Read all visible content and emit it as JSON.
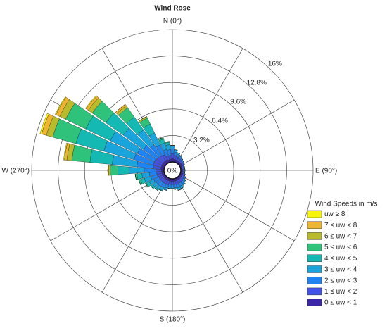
{
  "chart_data": {
    "type": "windrose",
    "title": "Wind Rose",
    "direction_labels": [
      "N (0°)",
      "E (90°)",
      "S (180°)",
      "W (270°)"
    ],
    "center_label": "0%",
    "rlim": [
      0,
      16
    ],
    "rticks": [
      {
        "value": 3.2,
        "label": "3.2%"
      },
      {
        "value": 6.4,
        "label": "6.4%"
      },
      {
        "value": 9.6,
        "label": "9.6%"
      },
      {
        "value": 12.8,
        "label": "12.8%"
      },
      {
        "value": 16,
        "label": "16%"
      }
    ],
    "legend_title": "Wind Speeds in m/s",
    "legend_position": "lower right",
    "series": [
      {
        "name": "0 ≤ uw < 1",
        "color": "#3b27a6",
        "values": [
          0.4,
          0.3,
          0.3,
          0.3,
          0.3,
          0.3,
          0.3,
          0.2,
          0.2,
          0.2,
          0.2,
          0.3,
          0.3,
          0.3,
          0.3,
          0.3,
          0.3,
          0.3,
          0.3,
          0.3,
          0.3,
          0.3,
          0.3,
          0.3,
          0.3,
          0.3,
          0.3,
          0.3,
          0.4,
          0.4,
          0.4,
          0.4,
          0.4,
          0.4,
          0.3,
          0.3
        ]
      },
      {
        "name": "1 ≤ uw < 2",
        "color": "#4252e8",
        "values": [
          0.6,
          0.5,
          0.4,
          0.3,
          0.3,
          0.2,
          0.2,
          0.2,
          0.2,
          0.2,
          0.2,
          0.2,
          0.3,
          0.3,
          0.4,
          0.4,
          0.5,
          0.4,
          0.4,
          0.4,
          0.5,
          0.5,
          0.5,
          0.5,
          0.5,
          0.6,
          0.6,
          0.7,
          0.9,
          1.0,
          1.0,
          0.9,
          0.8,
          0.7,
          0.5,
          0.5
        ]
      },
      {
        "name": "2 ≤ uw < 3",
        "color": "#1f83f2",
        "values": [
          0.6,
          0.4,
          0.3,
          0.3,
          0.2,
          0.2,
          0.1,
          0.1,
          0.1,
          0.1,
          0.1,
          0.1,
          0.2,
          0.3,
          0.3,
          0.4,
          0.4,
          0.4,
          0.3,
          0.3,
          0.4,
          0.5,
          0.6,
          0.6,
          0.7,
          0.8,
          0.9,
          1.4,
          2.0,
          2.4,
          2.3,
          2.0,
          1.6,
          1.3,
          0.8,
          0.7
        ]
      },
      {
        "name": "3 ≤ uw < 4",
        "color": "#19a5dc",
        "values": [
          0.4,
          0.3,
          0.2,
          0.1,
          0,
          0,
          0,
          0,
          0,
          0,
          0,
          0,
          0,
          0.1,
          0.2,
          0.3,
          0.3,
          0.2,
          0.2,
          0.2,
          0.3,
          0.4,
          0.4,
          0.5,
          0.6,
          0.8,
          0.9,
          1.8,
          3.0,
          3.8,
          3.6,
          3.0,
          2.2,
          1.6,
          0.8,
          0.6
        ]
      },
      {
        "name": "4 ≤ uw < 5",
        "color": "#14b9b4",
        "values": [
          0,
          0,
          0,
          0,
          0,
          0,
          0,
          0,
          0,
          0,
          0,
          0,
          0,
          0,
          0,
          0,
          0,
          0,
          0,
          0,
          0,
          0.1,
          0.2,
          0.3,
          0.4,
          0.5,
          0.6,
          1.4,
          2.7,
          3.5,
          3.3,
          2.6,
          1.9,
          1.2,
          0.5,
          0.3
        ]
      },
      {
        "name": "5 ≤ uw < 6",
        "color": "#2ec27a",
        "values": [
          0,
          0,
          0,
          0,
          0,
          0,
          0,
          0,
          0,
          0,
          0,
          0,
          0,
          0,
          0,
          0,
          0,
          0,
          0,
          0,
          0,
          0,
          0,
          0,
          0.1,
          0.2,
          0.2,
          0.9,
          2.2,
          2.9,
          2.7,
          2.0,
          1.4,
          0.8,
          0.2,
          0.1
        ]
      },
      {
        "name": "6 ≤ uw < 7",
        "color": "#b9bb2c",
        "values": [
          0,
          0,
          0,
          0,
          0,
          0,
          0,
          0,
          0,
          0,
          0,
          0,
          0,
          0,
          0,
          0,
          0,
          0,
          0,
          0,
          0,
          0,
          0,
          0,
          0,
          0,
          0,
          0.2,
          0.6,
          0.8,
          0.8,
          0.6,
          0.3,
          0.2,
          0,
          0
        ]
      },
      {
        "name": "7 ≤ uw < 8",
        "color": "#f0b530",
        "values": [
          0,
          0,
          0,
          0,
          0,
          0,
          0,
          0,
          0,
          0,
          0,
          0,
          0,
          0,
          0,
          0,
          0,
          0,
          0,
          0,
          0,
          0,
          0,
          0,
          0,
          0,
          0,
          0.1,
          0.3,
          0.6,
          0.5,
          0.3,
          0.2,
          0,
          0,
          0
        ]
      },
      {
        "name": "uw ≥ 8",
        "color": "#f8f20f",
        "values": [
          0,
          0,
          0,
          0,
          0,
          0,
          0,
          0,
          0,
          0,
          0,
          0,
          0,
          0,
          0,
          0,
          0,
          0,
          0,
          0,
          0,
          0,
          0,
          0,
          0,
          0,
          0,
          0,
          0.1,
          0.2,
          0.1,
          0.1,
          0,
          0,
          0,
          0
        ]
      }
    ]
  }
}
